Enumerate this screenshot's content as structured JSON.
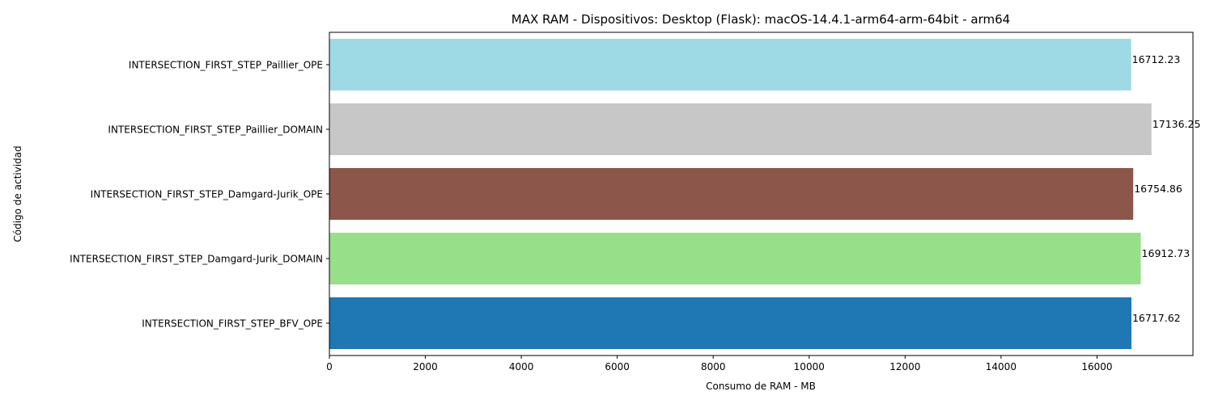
{
  "chart_data": {
    "type": "bar",
    "orientation": "horizontal",
    "title": "MAX RAM - Dispositivos: Desktop (Flask): macOS-14.4.1-arm64-arm-64bit - arm64",
    "xlabel": "Consumo de RAM - MB",
    "ylabel": "Código de actividad",
    "categories": [
      "INTERSECTION_FIRST_STEP_BFV_OPE",
      "INTERSECTION_FIRST_STEP_Damgard-Jurik_DOMAIN",
      "INTERSECTION_FIRST_STEP_Damgard-Jurik_OPE",
      "INTERSECTION_FIRST_STEP_Paillier_DOMAIN",
      "INTERSECTION_FIRST_STEP_Paillier_OPE"
    ],
    "values": [
      16717.62,
      16912.73,
      16754.86,
      17136.25,
      16712.23
    ],
    "value_labels": [
      "16717.62",
      "16912.73",
      "16754.86",
      "17136.25",
      "16712.23"
    ],
    "colors": [
      "#1f77b4",
      "#98df8a",
      "#8c564b",
      "#c7c7c7",
      "#9edae5"
    ],
    "xlim": [
      0,
      18000
    ],
    "xticks": [
      0,
      2000,
      4000,
      6000,
      8000,
      10000,
      12000,
      14000,
      16000
    ],
    "xtick_labels": [
      "0",
      "2000",
      "4000",
      "6000",
      "8000",
      "10000",
      "12000",
      "14000",
      "16000"
    ],
    "grid": false,
    "legend": "none"
  }
}
